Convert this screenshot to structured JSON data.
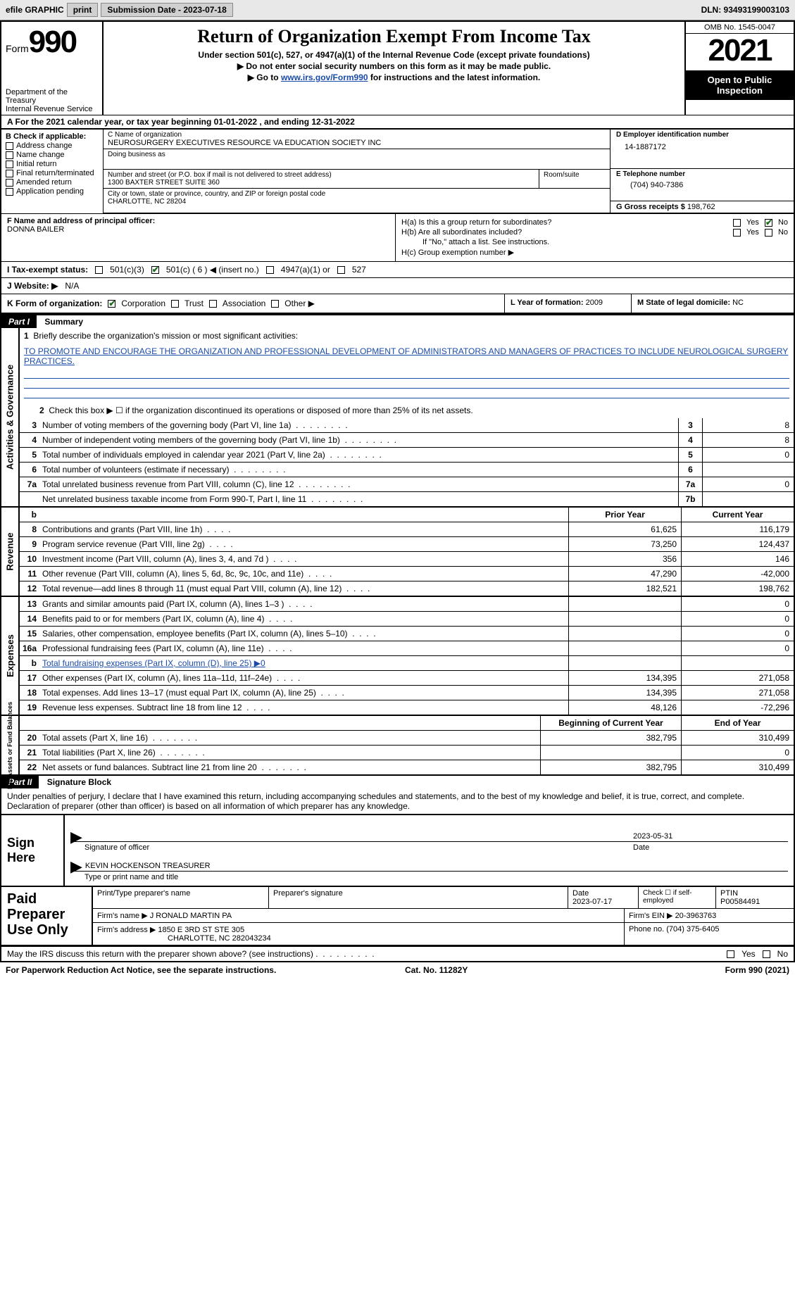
{
  "topbar": {
    "efile": "efile GRAPHIC",
    "print": "print",
    "submission": "Submission Date - 2023-07-18",
    "dln": "DLN: 93493199003103"
  },
  "header": {
    "form_word": "Form",
    "form_num": "990",
    "dept": "Department of the Treasury",
    "irs": "Internal Revenue Service",
    "title": "Return of Organization Exempt From Income Tax",
    "sub1": "Under section 501(c), 527, or 4947(a)(1) of the Internal Revenue Code (except private foundations)",
    "sub2": "▶ Do not enter social security numbers on this form as it may be made public.",
    "sub3_pre": "▶ Go to ",
    "sub3_link": "www.irs.gov/Form990",
    "sub3_post": " for instructions and the latest information.",
    "omb": "OMB No. 1545-0047",
    "year": "2021",
    "open": "Open to Public Inspection"
  },
  "rowA": "A For the 2021 calendar year, or tax year beginning 01-01-2022   , and ending 12-31-2022",
  "colB": {
    "title": "B Check if applicable:",
    "items": [
      "Address change",
      "Name change",
      "Initial return",
      "Final return/terminated",
      "Amended return",
      "Application pending"
    ]
  },
  "colC": {
    "name_lbl": "C Name of organization",
    "name": "NEUROSURGERY EXECUTIVES RESOURCE VA EDUCATION SOCIETY INC",
    "dba_lbl": "Doing business as",
    "street_lbl": "Number and street (or P.O. box if mail is not delivered to street address)",
    "street": "1300 BAXTER STREET SUITE 360",
    "room_lbl": "Room/suite",
    "city_lbl": "City or town, state or province, country, and ZIP or foreign postal code",
    "city": "CHARLOTTE, NC  28204"
  },
  "colD": {
    "lbl": "D Employer identification number",
    "val": "14-1887172"
  },
  "colE": {
    "lbl": "E Telephone number",
    "val": "(704) 940-7386"
  },
  "colG": {
    "lbl": "G Gross receipts $",
    "val": "198,762"
  },
  "colF": {
    "lbl": "F  Name and address of principal officer:",
    "name": "DONNA BAILER"
  },
  "colH": {
    "a": "H(a)  Is this a group return for subordinates?",
    "b": "H(b)  Are all subordinates included?",
    "note": "If \"No,\" attach a list. See instructions.",
    "c": "H(c)  Group exemption number ▶"
  },
  "rowI": {
    "lbl": "I   Tax-exempt status:",
    "o1": "501(c)(3)",
    "o2": "501(c) ( 6 ) ◀ (insert no.)",
    "o3": "4947(a)(1) or",
    "o4": "527"
  },
  "rowJ": {
    "lbl": "J   Website: ▶",
    "val": "N/A"
  },
  "rowK": {
    "lbl": "K Form of organization:",
    "o1": "Corporation",
    "o2": "Trust",
    "o3": "Association",
    "o4": "Other ▶"
  },
  "rowL": {
    "lbl": "L Year of formation:",
    "val": "2009"
  },
  "rowM": {
    "lbl": "M State of legal domicile:",
    "val": "NC"
  },
  "part1": {
    "label": "Part I",
    "title": "Summary",
    "tab1": "Activities & Governance",
    "tab2": "Revenue",
    "tab3": "Expenses",
    "tab4": "Net Assets or Fund Balances",
    "l1": "Briefly describe the organization's mission or most significant activities:",
    "mission": "TO PROMOTE AND ENCOURAGE THE ORGANIZATION AND PROFESSIONAL DEVELOPMENT OF ADMINISTRATORS AND MANAGERS OF PRACTICES TO INCLUDE NEUROLOGICAL SURGERY PRACTICES.",
    "l2": "Check this box ▶ ☐  if the organization discontinued its operations or disposed of more than 25% of its net assets.",
    "lines_gov": [
      {
        "n": "3",
        "t": "Number of voting members of the governing body (Part VI, line 1a)",
        "box": "3",
        "v": "8"
      },
      {
        "n": "4",
        "t": "Number of independent voting members of the governing body (Part VI, line 1b)",
        "box": "4",
        "v": "8"
      },
      {
        "n": "5",
        "t": "Total number of individuals employed in calendar year 2021 (Part V, line 2a)",
        "box": "5",
        "v": "0"
      },
      {
        "n": "6",
        "t": "Total number of volunteers (estimate if necessary)",
        "box": "6",
        "v": ""
      },
      {
        "n": "7a",
        "t": "Total unrelated business revenue from Part VIII, column (C), line 12",
        "box": "7a",
        "v": "0"
      },
      {
        "n": "",
        "t": "Net unrelated business taxable income from Form 990-T, Part I, line 11",
        "box": "7b",
        "v": ""
      }
    ],
    "hdr_prior": "Prior Year",
    "hdr_curr": "Current Year",
    "rev": [
      {
        "n": "8",
        "t": "Contributions and grants (Part VIII, line 1h)",
        "p": "61,625",
        "c": "116,179"
      },
      {
        "n": "9",
        "t": "Program service revenue (Part VIII, line 2g)",
        "p": "73,250",
        "c": "124,437"
      },
      {
        "n": "10",
        "t": "Investment income (Part VIII, column (A), lines 3, 4, and 7d )",
        "p": "356",
        "c": "146"
      },
      {
        "n": "11",
        "t": "Other revenue (Part VIII, column (A), lines 5, 6d, 8c, 9c, 10c, and 11e)",
        "p": "47,290",
        "c": "-42,000"
      },
      {
        "n": "12",
        "t": "Total revenue—add lines 8 through 11 (must equal Part VIII, column (A), line 12)",
        "p": "182,521",
        "c": "198,762"
      }
    ],
    "exp": [
      {
        "n": "13",
        "t": "Grants and similar amounts paid (Part IX, column (A), lines 1–3 )",
        "p": "",
        "c": "0"
      },
      {
        "n": "14",
        "t": "Benefits paid to or for members (Part IX, column (A), line 4)",
        "p": "",
        "c": "0"
      },
      {
        "n": "15",
        "t": "Salaries, other compensation, employee benefits (Part IX, column (A), lines 5–10)",
        "p": "",
        "c": "0"
      },
      {
        "n": "16a",
        "t": "Professional fundraising fees (Part IX, column (A), line 11e)",
        "p": "",
        "c": "0"
      },
      {
        "n": "b",
        "t": "Total fundraising expenses (Part IX, column (D), line 25) ▶0",
        "p": "GREY",
        "c": "GREY"
      },
      {
        "n": "17",
        "t": "Other expenses (Part IX, column (A), lines 11a–11d, 11f–24e)",
        "p": "134,395",
        "c": "271,058"
      },
      {
        "n": "18",
        "t": "Total expenses. Add lines 13–17 (must equal Part IX, column (A), line 25)",
        "p": "134,395",
        "c": "271,058"
      },
      {
        "n": "19",
        "t": "Revenue less expenses. Subtract line 18 from line 12",
        "p": "48,126",
        "c": "-72,296"
      }
    ],
    "hdr_begin": "Beginning of Current Year",
    "hdr_end": "End of Year",
    "net": [
      {
        "n": "20",
        "t": "Total assets (Part X, line 16)",
        "p": "382,795",
        "c": "310,499"
      },
      {
        "n": "21",
        "t": "Total liabilities (Part X, line 26)",
        "p": "",
        "c": "0"
      },
      {
        "n": "22",
        "t": "Net assets or fund balances. Subtract line 21 from line 20",
        "p": "382,795",
        "c": "310,499"
      }
    ]
  },
  "part2": {
    "label": "Part II",
    "title": "Signature Block",
    "intro": "Under penalties of perjury, I declare that I have examined this return, including accompanying schedules and statements, and to the best of my knowledge and belief, it is true, correct, and complete. Declaration of preparer (other than officer) is based on all information of which preparer has any knowledge.",
    "sign_here": "Sign Here",
    "sig_officer": "Signature of officer",
    "sig_date": "2023-05-31",
    "date_lbl": "Date",
    "typed_name": "KEVIN HOCKENSON  TREASURER",
    "typed_lbl": "Type or print name and title",
    "paid": "Paid Preparer Use Only",
    "pp_name_lbl": "Print/Type preparer's name",
    "pp_sig_lbl": "Preparer's signature",
    "pp_date_lbl": "Date",
    "pp_date": "2023-07-17",
    "pp_self": "Check ☐ if self-employed",
    "ptin_lbl": "PTIN",
    "ptin": "P00584491",
    "firm_name_lbl": "Firm's name    ▶",
    "firm_name": "J RONALD MARTIN PA",
    "firm_ein_lbl": "Firm's EIN ▶",
    "firm_ein": "20-3963763",
    "firm_addr_lbl": "Firm's address ▶",
    "firm_addr": "1850 E 3RD ST STE 305",
    "firm_city": "CHARLOTTE, NC  282043234",
    "firm_phone_lbl": "Phone no.",
    "firm_phone": "(704) 375-6405",
    "may_discuss": "May the IRS discuss this return with the preparer shown above? (see instructions)"
  },
  "footer": {
    "pra": "For Paperwork Reduction Act Notice, see the separate instructions.",
    "cat": "Cat. No. 11282Y",
    "form": "Form 990 (2021)"
  },
  "yn": {
    "yes": "Yes",
    "no": "No"
  }
}
